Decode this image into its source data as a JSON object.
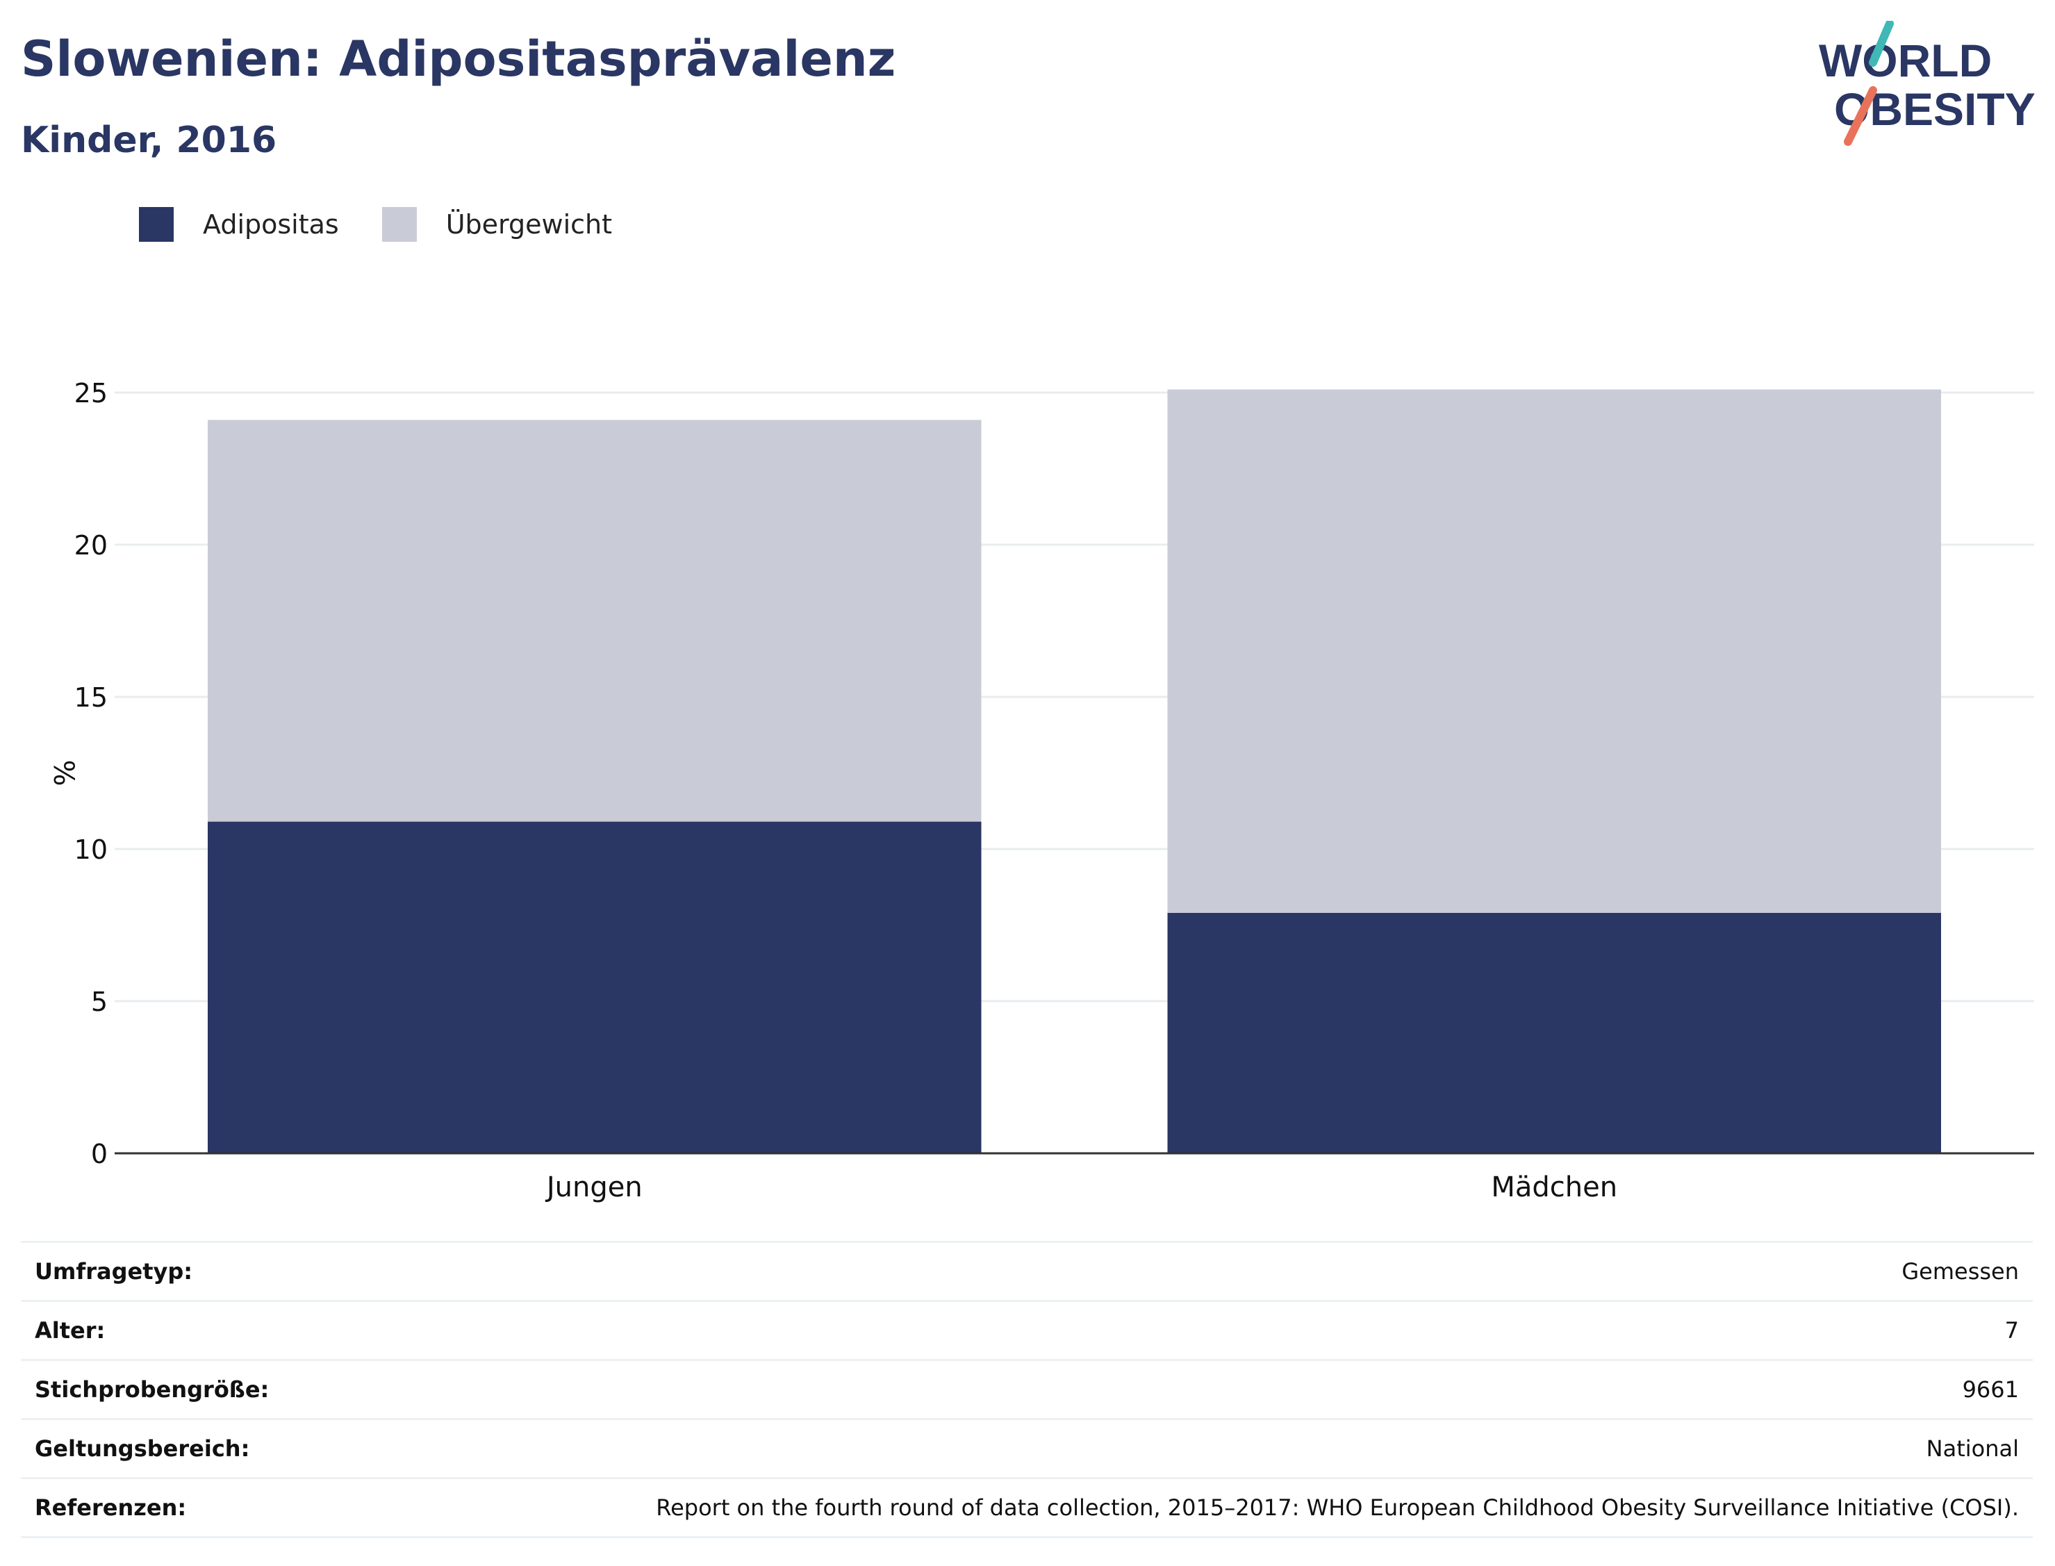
{
  "header": {
    "title": "Slowenien: Adipositasprävalenz",
    "subtitle": "Kinder, 2016"
  },
  "logo": {
    "line1": "WORLD",
    "line2": "OBESITY",
    "slash_colors": [
      "#3fb8b6",
      "#e8735a"
    ]
  },
  "colors": {
    "adipositas": "#2a3663",
    "uebergewicht": "#c9cbd7",
    "text": "#2a3663"
  },
  "chart_data": {
    "type": "bar",
    "stacked": true,
    "categories": [
      "Jungen",
      "Mädchen"
    ],
    "series": [
      {
        "name": "Adipositas",
        "values": [
          10.9,
          7.9
        ],
        "color": "#2a3663"
      },
      {
        "name": "Übergewicht",
        "values": [
          13.2,
          17.2
        ],
        "color": "#c9cbd7"
      }
    ],
    "ylabel": "%",
    "ylim": [
      0,
      25
    ],
    "yticks": [
      "0",
      "5",
      "10",
      "15",
      "20",
      "25"
    ],
    "grid": true,
    "legend": "top-left"
  },
  "info": [
    {
      "label": "Umfragetyp:",
      "value": "Gemessen"
    },
    {
      "label": "Alter:",
      "value": "7"
    },
    {
      "label": "Stichprobengröße:",
      "value": "9661"
    },
    {
      "label": "Geltungsbereich:",
      "value": "National"
    },
    {
      "label": "Referenzen:",
      "value": "Report on the fourth round of data collection, 2015–2017: WHO European Childhood Obesity Surveillance Initiative (COSI)."
    }
  ]
}
